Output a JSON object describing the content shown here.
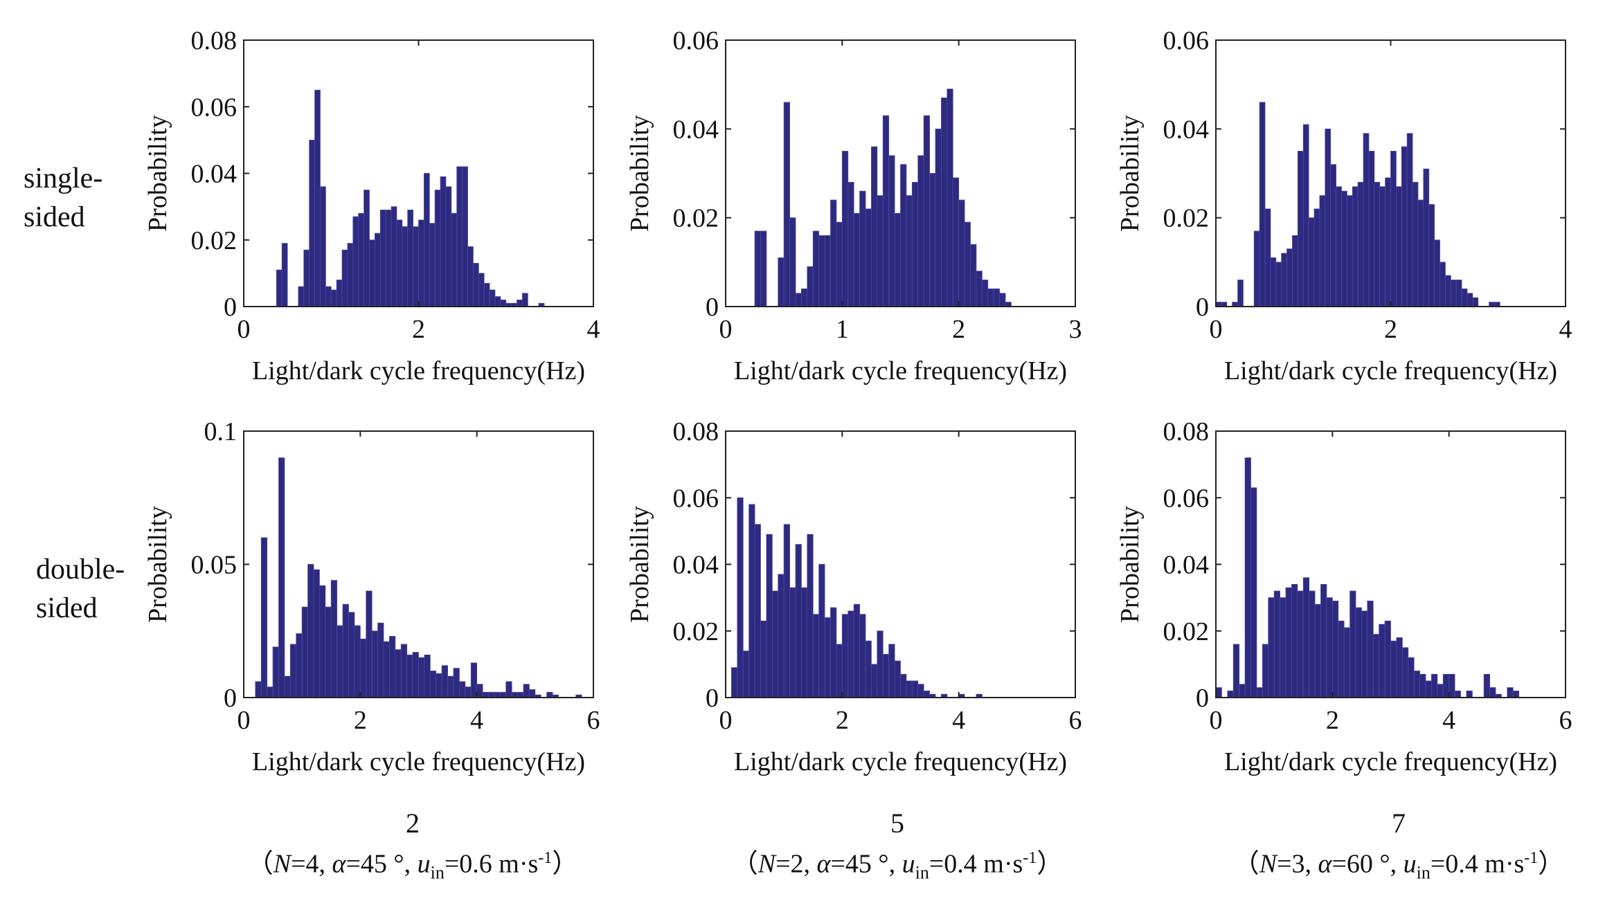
{
  "row_labels": [
    {
      "line1": "single-",
      "line2": "sided"
    },
    {
      "line1": "double-",
      "line2": "sided"
    }
  ],
  "cases": [
    {
      "number": "2",
      "N": "4",
      "alpha": "45",
      "u": "0.6"
    },
    {
      "number": "5",
      "N": "2",
      "alpha": "45",
      "u": "0.4"
    },
    {
      "number": "7",
      "N": "3",
      "alpha": "60",
      "u": "0.4"
    }
  ],
  "param_text": {
    "open": "（",
    "close": "）",
    "N_sym": "N",
    "alpha_sym": "α",
    "u_sym": "u",
    "u_sub": "in",
    "eq": "=",
    "deg": " °",
    "sep": ", ",
    "unit": " m·s",
    "unit_exp": "-1"
  },
  "colors": {
    "bar_fill": "#2e2a80",
    "bar_stroke": "#4a4aa0",
    "axis": "#222222"
  },
  "chart_data": [
    {
      "type": "bar",
      "title": "",
      "xlabel": "Light/dark cycle frequency(Hz)",
      "ylabel": "Probability",
      "xlim": [
        0,
        4
      ],
      "ylim": [
        0,
        0.08
      ],
      "xticks": [
        0,
        2,
        4
      ],
      "xtick_labels": [
        "0",
        "2",
        "4"
      ],
      "yticks": [
        0,
        0.02,
        0.04,
        0.06,
        0.08
      ],
      "ytick_labels": [
        "0",
        "0.02",
        "0.04",
        "0.06",
        "0.08"
      ],
      "bin_width": 0.0625,
      "x_start": 0.375,
      "values": [
        0.011,
        0.019,
        0,
        0,
        0.006,
        0.017,
        0.05,
        0.065,
        0.036,
        0.006,
        0.005,
        0.008,
        0.017,
        0.019,
        0.027,
        0.028,
        0.035,
        0.02,
        0.022,
        0.029,
        0.029,
        0.03,
        0.026,
        0.024,
        0.029,
        0.024,
        0.026,
        0.04,
        0.025,
        0.035,
        0.039,
        0.036,
        0.028,
        0.042,
        0.042,
        0.018,
        0.013,
        0.01,
        0.007,
        0.005,
        0.003,
        0.002,
        0.001,
        0.001,
        0.002,
        0.004,
        0,
        0,
        0.001
      ]
    },
    {
      "type": "bar",
      "title": "",
      "xlabel": "Light/dark cycle frequency(Hz)",
      "ylabel": "Probability",
      "xlim": [
        0,
        3
      ],
      "ylim": [
        0,
        0.06
      ],
      "xticks": [
        0,
        1,
        2,
        3
      ],
      "xtick_labels": [
        "0",
        "1",
        "2",
        "3"
      ],
      "yticks": [
        0,
        0.02,
        0.04,
        0.06
      ],
      "ytick_labels": [
        "0",
        "0.02",
        "0.04",
        "0.06"
      ],
      "bin_width": 0.05,
      "x_start": 0.25,
      "values": [
        0.017,
        0.017,
        0,
        0,
        0.011,
        0.046,
        0.02,
        0.003,
        0.004,
        0.009,
        0.017,
        0.016,
        0.016,
        0.024,
        0.019,
        0.035,
        0.028,
        0.021,
        0.026,
        0.022,
        0.036,
        0.025,
        0.043,
        0.034,
        0.021,
        0.032,
        0.025,
        0.028,
        0.034,
        0.043,
        0.03,
        0.04,
        0.047,
        0.049,
        0.029,
        0.024,
        0.019,
        0.014,
        0.008,
        0.006,
        0.004,
        0.004,
        0.003,
        0.001
      ]
    },
    {
      "type": "bar",
      "title": "",
      "xlabel": "Light/dark cycle frequency(Hz)",
      "ylabel": "Probability",
      "xlim": [
        0,
        4
      ],
      "ylim": [
        0,
        0.06
      ],
      "xticks": [
        0,
        2,
        4
      ],
      "xtick_labels": [
        "0",
        "2",
        "4"
      ],
      "yticks": [
        0,
        0.02,
        0.04,
        0.06
      ],
      "ytick_labels": [
        "0",
        "0.02",
        "0.04",
        "0.06"
      ],
      "bin_width": 0.0625,
      "x_start": 0.0,
      "values": [
        0.001,
        0.001,
        0,
        0.001,
        0.006,
        0,
        0,
        0.017,
        0.046,
        0.022,
        0.011,
        0.01,
        0.012,
        0.013,
        0.016,
        0.035,
        0.041,
        0.02,
        0.022,
        0.025,
        0.04,
        0.032,
        0.027,
        0.026,
        0.025,
        0.027,
        0.028,
        0.039,
        0.035,
        0.028,
        0.027,
        0.029,
        0.035,
        0.027,
        0.036,
        0.039,
        0.028,
        0.024,
        0.031,
        0.023,
        0.015,
        0.01,
        0.007,
        0.006,
        0.006,
        0.004,
        0.003,
        0.002,
        0,
        0,
        0.001,
        0.001
      ]
    },
    {
      "type": "bar",
      "title": "",
      "xlabel": "Light/dark cycle frequency(Hz)",
      "ylabel": "Probability",
      "xlim": [
        0,
        6
      ],
      "ylim": [
        0,
        0.1
      ],
      "xticks": [
        0,
        2,
        4,
        6
      ],
      "xtick_labels": [
        "0",
        "2",
        "4",
        "6"
      ],
      "yticks": [
        0,
        0.05,
        0.1
      ],
      "ytick_labels": [
        "0",
        "0.05",
        "0.1"
      ],
      "bin_width": 0.1,
      "x_start": 0.2,
      "values": [
        0.006,
        0.06,
        0.004,
        0.019,
        0.09,
        0.008,
        0.02,
        0.024,
        0.034,
        0.05,
        0.048,
        0.042,
        0.034,
        0.044,
        0.027,
        0.035,
        0.032,
        0.027,
        0.022,
        0.04,
        0.025,
        0.028,
        0.021,
        0.023,
        0.018,
        0.02,
        0.016,
        0.017,
        0.015,
        0.016,
        0.01,
        0.009,
        0.012,
        0.008,
        0.011,
        0.006,
        0.004,
        0.013,
        0.005,
        0.002,
        0.002,
        0.002,
        0.002,
        0.006,
        0.002,
        0.002,
        0.005,
        0.003,
        0.001,
        0,
        0.002,
        0.001,
        0,
        0,
        0,
        0.001
      ]
    },
    {
      "type": "bar",
      "title": "",
      "xlabel": "Light/dark cycle frequency(Hz)",
      "ylabel": "Probability",
      "xlim": [
        0,
        6
      ],
      "ylim": [
        0,
        0.08
      ],
      "xticks": [
        0,
        2,
        4,
        6
      ],
      "xtick_labels": [
        "0",
        "2",
        "4",
        "6"
      ],
      "yticks": [
        0,
        0.02,
        0.04,
        0.06,
        0.08
      ],
      "ytick_labels": [
        "0",
        "0.02",
        "0.04",
        "0.06",
        "0.08"
      ],
      "bin_width": 0.1,
      "x_start": 0.1,
      "values": [
        0.009,
        0.06,
        0.014,
        0.058,
        0.052,
        0.023,
        0.049,
        0.032,
        0.037,
        0.052,
        0.033,
        0.046,
        0.033,
        0.049,
        0.025,
        0.04,
        0.024,
        0.027,
        0.016,
        0.025,
        0.026,
        0.028,
        0.025,
        0.017,
        0.01,
        0.02,
        0.013,
        0.016,
        0.011,
        0.007,
        0.005,
        0.005,
        0.004,
        0.002,
        0.001,
        0,
        0.001,
        0,
        0,
        0.001,
        0,
        0,
        0.001
      ]
    },
    {
      "type": "bar",
      "title": "",
      "xlabel": "Light/dark cycle frequency(Hz)",
      "ylabel": "Probability",
      "xlim": [
        0,
        6
      ],
      "ylim": [
        0,
        0.08
      ],
      "xticks": [
        0,
        2,
        4,
        6
      ],
      "xtick_labels": [
        "0",
        "2",
        "4",
        "6"
      ],
      "yticks": [
        0,
        0.02,
        0.04,
        0.06,
        0.08
      ],
      "ytick_labels": [
        "0",
        "0.02",
        "0.04",
        "0.06",
        "0.08"
      ],
      "bin_width": 0.1,
      "x_start": 0.0,
      "values": [
        0.003,
        0,
        0.002,
        0.016,
        0.004,
        0.072,
        0.063,
        0.003,
        0.016,
        0.03,
        0.032,
        0.03,
        0.033,
        0.034,
        0.032,
        0.036,
        0.032,
        0.028,
        0.034,
        0.03,
        0.029,
        0.023,
        0.021,
        0.032,
        0.027,
        0.026,
        0.029,
        0.019,
        0.022,
        0.023,
        0.017,
        0.018,
        0.015,
        0.012,
        0.008,
        0.007,
        0.005,
        0.007,
        0.004,
        0.007,
        0.007,
        0.002,
        0,
        0.002,
        0,
        0,
        0.007,
        0.003,
        0.001,
        0,
        0.003,
        0.002
      ]
    }
  ]
}
